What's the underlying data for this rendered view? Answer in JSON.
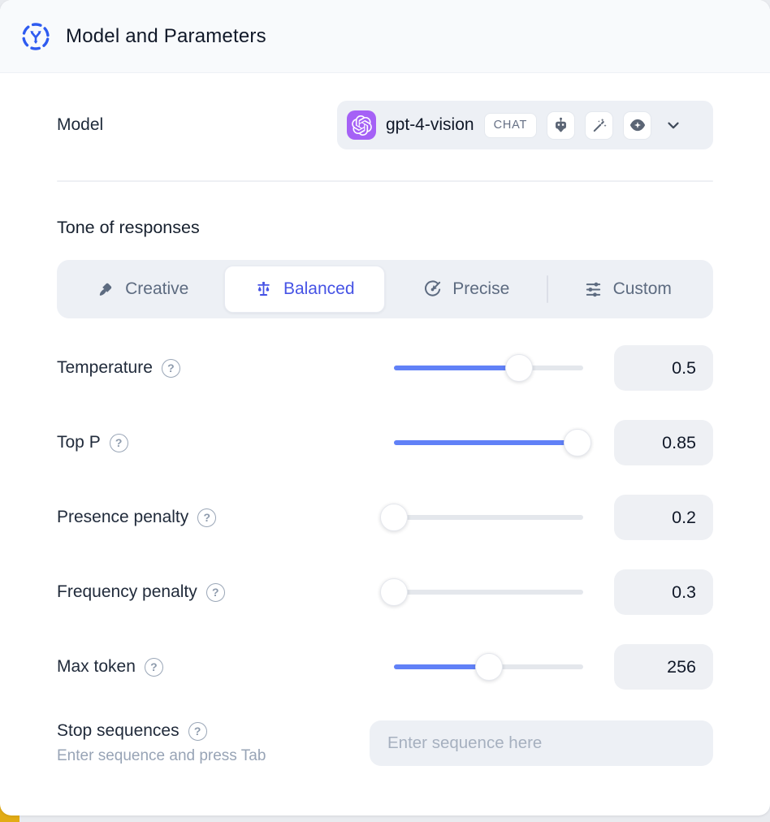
{
  "panel": {
    "title": "Model and Parameters"
  },
  "model_row": {
    "label": "Model",
    "model_name": "gpt-4-vision",
    "type_badge": "CHAT",
    "capabilities": [
      "robot",
      "magic-wand",
      "vision-eye"
    ]
  },
  "tone": {
    "heading": "Tone of responses",
    "options": [
      {
        "label": "Creative",
        "icon": "paintbrush-icon",
        "active": false
      },
      {
        "label": "Balanced",
        "icon": "balance-scale-icon",
        "active": true
      },
      {
        "label": "Precise",
        "icon": "target-icon",
        "active": false
      },
      {
        "label": "Custom",
        "icon": "sliders-icon",
        "active": false
      }
    ]
  },
  "parameters": [
    {
      "label": "Temperature",
      "value": "0.5",
      "slider_pct": 66
    },
    {
      "label": "Top P",
      "value": "0.85",
      "slider_pct": 97
    },
    {
      "label": "Presence penalty",
      "value": "0.2",
      "slider_pct": 0
    },
    {
      "label": "Frequency penalty",
      "value": "0.3",
      "slider_pct": 0
    },
    {
      "label": "Max token",
      "value": "256",
      "slider_pct": 50
    }
  ],
  "stop_sequences": {
    "label": "Stop sequences",
    "hint": "Enter sequence and press Tab",
    "placeholder": "Enter sequence here"
  },
  "glyphs": {
    "help": "?"
  },
  "colors": {
    "accent_blue": "#6181f7",
    "active_indigo": "#4653e5",
    "provider_purple": "#a561f6",
    "header_bg": "#f8fafc",
    "control_bg": "#edf0f5"
  }
}
